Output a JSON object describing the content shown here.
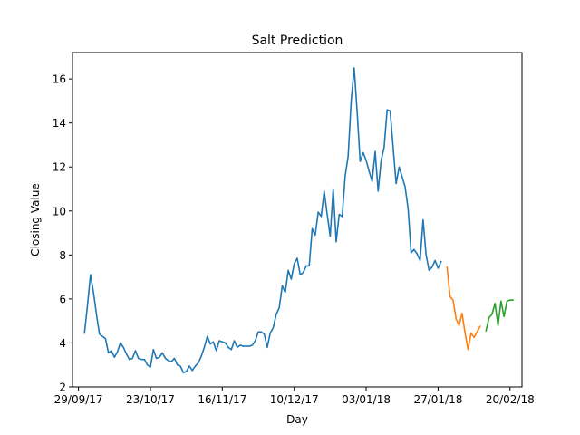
{
  "chart_data": {
    "type": "line",
    "title": "Salt Prediction",
    "xlabel": "Day",
    "ylabel": "Closing Value",
    "x_unit": "date",
    "xlim": [
      "2017-09-27",
      "2018-02-24"
    ],
    "ylim": [
      2,
      17.2
    ],
    "x_ticks": [
      {
        "date": "2017-09-29",
        "label": "29/09/17"
      },
      {
        "date": "2017-10-23",
        "label": "23/10/17"
      },
      {
        "date": "2017-11-16",
        "label": "16/11/17"
      },
      {
        "date": "2017-12-10",
        "label": "10/12/17"
      },
      {
        "date": "2018-01-03",
        "label": "03/01/18"
      },
      {
        "date": "2018-01-27",
        "label": "27/01/18"
      },
      {
        "date": "2018-02-20",
        "label": "20/02/18"
      }
    ],
    "y_ticks": [
      2,
      4,
      6,
      8,
      10,
      12,
      14,
      16
    ],
    "grid": false,
    "series": [
      {
        "color": "#1f77b4",
        "points": [
          [
            "2017-10-01",
            4.45
          ],
          [
            "2017-10-02",
            5.7
          ],
          [
            "2017-10-03",
            7.1
          ],
          [
            "2017-10-04",
            6.3
          ],
          [
            "2017-10-05",
            5.3
          ],
          [
            "2017-10-06",
            4.4
          ],
          [
            "2017-10-07",
            4.3
          ],
          [
            "2017-10-08",
            4.2
          ],
          [
            "2017-10-09",
            3.55
          ],
          [
            "2017-10-10",
            3.65
          ],
          [
            "2017-10-11",
            3.35
          ],
          [
            "2017-10-12",
            3.6
          ],
          [
            "2017-10-13",
            4.0
          ],
          [
            "2017-10-14",
            3.8
          ],
          [
            "2017-10-15",
            3.5
          ],
          [
            "2017-10-16",
            3.25
          ],
          [
            "2017-10-17",
            3.3
          ],
          [
            "2017-10-18",
            3.65
          ],
          [
            "2017-10-19",
            3.3
          ],
          [
            "2017-10-20",
            3.25
          ],
          [
            "2017-10-21",
            3.25
          ],
          [
            "2017-10-22",
            3.0
          ],
          [
            "2017-10-23",
            2.9
          ],
          [
            "2017-10-24",
            3.7
          ],
          [
            "2017-10-25",
            3.3
          ],
          [
            "2017-10-26",
            3.35
          ],
          [
            "2017-10-27",
            3.55
          ],
          [
            "2017-10-28",
            3.3
          ],
          [
            "2017-10-29",
            3.2
          ],
          [
            "2017-10-30",
            3.15
          ],
          [
            "2017-10-31",
            3.3
          ],
          [
            "2017-11-01",
            3.0
          ],
          [
            "2017-11-02",
            2.95
          ],
          [
            "2017-11-03",
            2.65
          ],
          [
            "2017-11-04",
            2.7
          ],
          [
            "2017-11-05",
            2.95
          ],
          [
            "2017-11-06",
            2.75
          ],
          [
            "2017-11-07",
            2.95
          ],
          [
            "2017-11-08",
            3.1
          ],
          [
            "2017-11-09",
            3.4
          ],
          [
            "2017-11-10",
            3.8
          ],
          [
            "2017-11-11",
            4.3
          ],
          [
            "2017-11-12",
            3.95
          ],
          [
            "2017-11-13",
            4.05
          ],
          [
            "2017-11-14",
            3.65
          ],
          [
            "2017-11-15",
            4.1
          ],
          [
            "2017-11-16",
            4.05
          ],
          [
            "2017-11-17",
            4.0
          ],
          [
            "2017-11-18",
            3.8
          ],
          [
            "2017-11-19",
            3.7
          ],
          [
            "2017-11-20",
            4.1
          ],
          [
            "2017-11-21",
            3.8
          ],
          [
            "2017-11-22",
            3.9
          ],
          [
            "2017-11-23",
            3.85
          ],
          [
            "2017-11-24",
            3.85
          ],
          [
            "2017-11-25",
            3.85
          ],
          [
            "2017-11-26",
            3.9
          ],
          [
            "2017-11-27",
            4.1
          ],
          [
            "2017-11-28",
            4.5
          ],
          [
            "2017-11-29",
            4.5
          ],
          [
            "2017-11-30",
            4.4
          ],
          [
            "2017-12-01",
            3.8
          ],
          [
            "2017-12-02",
            4.45
          ],
          [
            "2017-12-03",
            4.7
          ],
          [
            "2017-12-04",
            5.3
          ],
          [
            "2017-12-05",
            5.6
          ],
          [
            "2017-12-06",
            6.6
          ],
          [
            "2017-12-07",
            6.3
          ],
          [
            "2017-12-08",
            7.3
          ],
          [
            "2017-12-09",
            6.9
          ],
          [
            "2017-12-10",
            7.6
          ],
          [
            "2017-12-11",
            7.85
          ],
          [
            "2017-12-12",
            7.1
          ],
          [
            "2017-12-13",
            7.2
          ],
          [
            "2017-12-14",
            7.5
          ],
          [
            "2017-12-15",
            7.5
          ],
          [
            "2017-12-16",
            9.2
          ],
          [
            "2017-12-17",
            8.9
          ],
          [
            "2017-12-18",
            9.95
          ],
          [
            "2017-12-19",
            9.75
          ],
          [
            "2017-12-20",
            10.9
          ],
          [
            "2017-12-21",
            9.85
          ],
          [
            "2017-12-22",
            8.85
          ],
          [
            "2017-12-23",
            11.0
          ],
          [
            "2017-12-24",
            8.6
          ],
          [
            "2017-12-25",
            9.85
          ],
          [
            "2017-12-26",
            9.75
          ],
          [
            "2017-12-27",
            11.6
          ],
          [
            "2017-12-28",
            12.5
          ],
          [
            "2017-12-29",
            15.0
          ],
          [
            "2017-12-30",
            16.5
          ],
          [
            "2017-12-31",
            14.5
          ],
          [
            "2018-01-01",
            12.25
          ],
          [
            "2018-01-02",
            12.65
          ],
          [
            "2018-01-03",
            12.3
          ],
          [
            "2018-01-04",
            11.8
          ],
          [
            "2018-01-05",
            11.35
          ],
          [
            "2018-01-06",
            12.7
          ],
          [
            "2018-01-07",
            10.9
          ],
          [
            "2018-01-08",
            12.3
          ],
          [
            "2018-01-09",
            12.9
          ],
          [
            "2018-01-10",
            14.6
          ],
          [
            "2018-01-11",
            14.55
          ],
          [
            "2018-01-12",
            12.9
          ],
          [
            "2018-01-13",
            11.25
          ],
          [
            "2018-01-14",
            12.0
          ],
          [
            "2018-01-15",
            11.55
          ],
          [
            "2018-01-16",
            11.1
          ],
          [
            "2018-01-17",
            10.1
          ],
          [
            "2018-01-18",
            8.1
          ],
          [
            "2018-01-19",
            8.25
          ],
          [
            "2018-01-20",
            8.05
          ],
          [
            "2018-01-21",
            7.75
          ],
          [
            "2018-01-22",
            9.6
          ],
          [
            "2018-01-23",
            8.0
          ],
          [
            "2018-01-24",
            7.3
          ],
          [
            "2018-01-25",
            7.45
          ],
          [
            "2018-01-26",
            7.75
          ],
          [
            "2018-01-27",
            7.4
          ],
          [
            "2018-01-28",
            7.7
          ]
        ]
      },
      {
        "color": "#ff7f0e",
        "points": [
          [
            "2018-01-30",
            7.45
          ],
          [
            "2018-01-31",
            6.1
          ],
          [
            "2018-02-01",
            5.95
          ],
          [
            "2018-02-02",
            5.1
          ],
          [
            "2018-02-03",
            4.8
          ],
          [
            "2018-02-04",
            5.35
          ],
          [
            "2018-02-05",
            4.45
          ],
          [
            "2018-02-06",
            3.7
          ],
          [
            "2018-02-07",
            4.45
          ],
          [
            "2018-02-08",
            4.25
          ],
          [
            "2018-02-09",
            4.5
          ],
          [
            "2018-02-10",
            4.75
          ]
        ]
      },
      {
        "color": "#2ca02c",
        "points": [
          [
            "2018-02-12",
            4.55
          ],
          [
            "2018-02-13",
            5.15
          ],
          [
            "2018-02-14",
            5.3
          ],
          [
            "2018-02-15",
            5.8
          ],
          [
            "2018-02-16",
            4.8
          ],
          [
            "2018-02-17",
            5.9
          ],
          [
            "2018-02-18",
            5.2
          ],
          [
            "2018-02-19",
            5.9
          ],
          [
            "2018-02-20",
            5.95
          ],
          [
            "2018-02-21",
            5.95
          ]
        ]
      }
    ]
  }
}
